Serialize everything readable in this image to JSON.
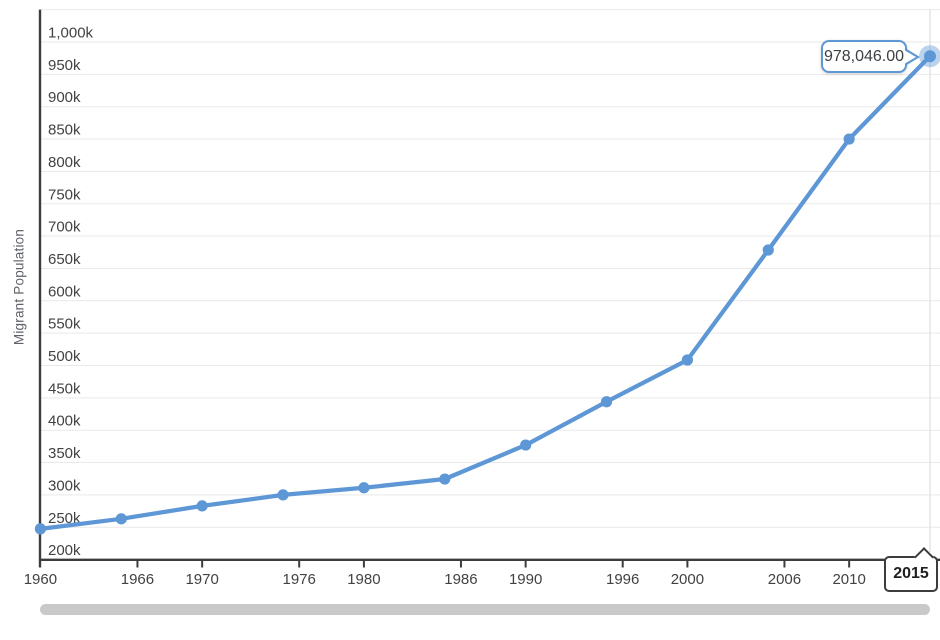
{
  "colors": {
    "line": "#5e97d5",
    "point": "#5e97d5",
    "selected_halo": "rgba(94,151,213,0.42)",
    "grid": "#e9e9e9",
    "crosshair": "#dedede",
    "axis": "#3c3c3c",
    "tick_text": "#424242",
    "y_title_text": "#5f6368",
    "tooltip_border": "#5e97d5",
    "tooltip_text": "#3c4043",
    "scrollbar": "#c9c9c9"
  },
  "chart_data": {
    "type": "line",
    "title": "",
    "xlabel": "",
    "ylabel": "Migrant Population",
    "series_name": "Migrant Population",
    "x": [
      1960,
      1965,
      1970,
      1975,
      1980,
      1985,
      1990,
      1995,
      2000,
      2005,
      2010,
      2015
    ],
    "values": [
      247500,
      263000,
      283000,
      300000,
      311000,
      324500,
      377000,
      444000,
      508500,
      678500,
      850000,
      978046
    ],
    "xlim": [
      1960,
      2015.6
    ],
    "ylim": [
      200000,
      1050000
    ],
    "grid": "horizontal",
    "legend": "none",
    "y_tick_values": [
      1000000,
      950000,
      900000,
      850000,
      800000,
      750000,
      700000,
      650000,
      600000,
      550000,
      500000,
      450000,
      400000,
      350000,
      300000,
      250000,
      200000
    ],
    "y_tick_labels": [
      "1,000k",
      "950k",
      "900k",
      "850k",
      "800k",
      "750k",
      "700k",
      "650k",
      "600k",
      "550k",
      "500k",
      "450k",
      "400k",
      "350k",
      "300k",
      "250k",
      "200k"
    ],
    "x_tick_years": [
      1960,
      1966,
      1970,
      1976,
      1980,
      1986,
      1990,
      1996,
      2000,
      2006,
      2010
    ],
    "x_tick_labels": [
      "1960",
      "1966",
      "1970",
      "1976",
      "1980",
      "1986",
      "1990",
      "1996",
      "2000",
      "2006",
      "2010"
    ],
    "selected_point": {
      "x": 2015,
      "value": 978046,
      "tooltip_label": "978,046.00",
      "axis_label": "2015"
    }
  }
}
